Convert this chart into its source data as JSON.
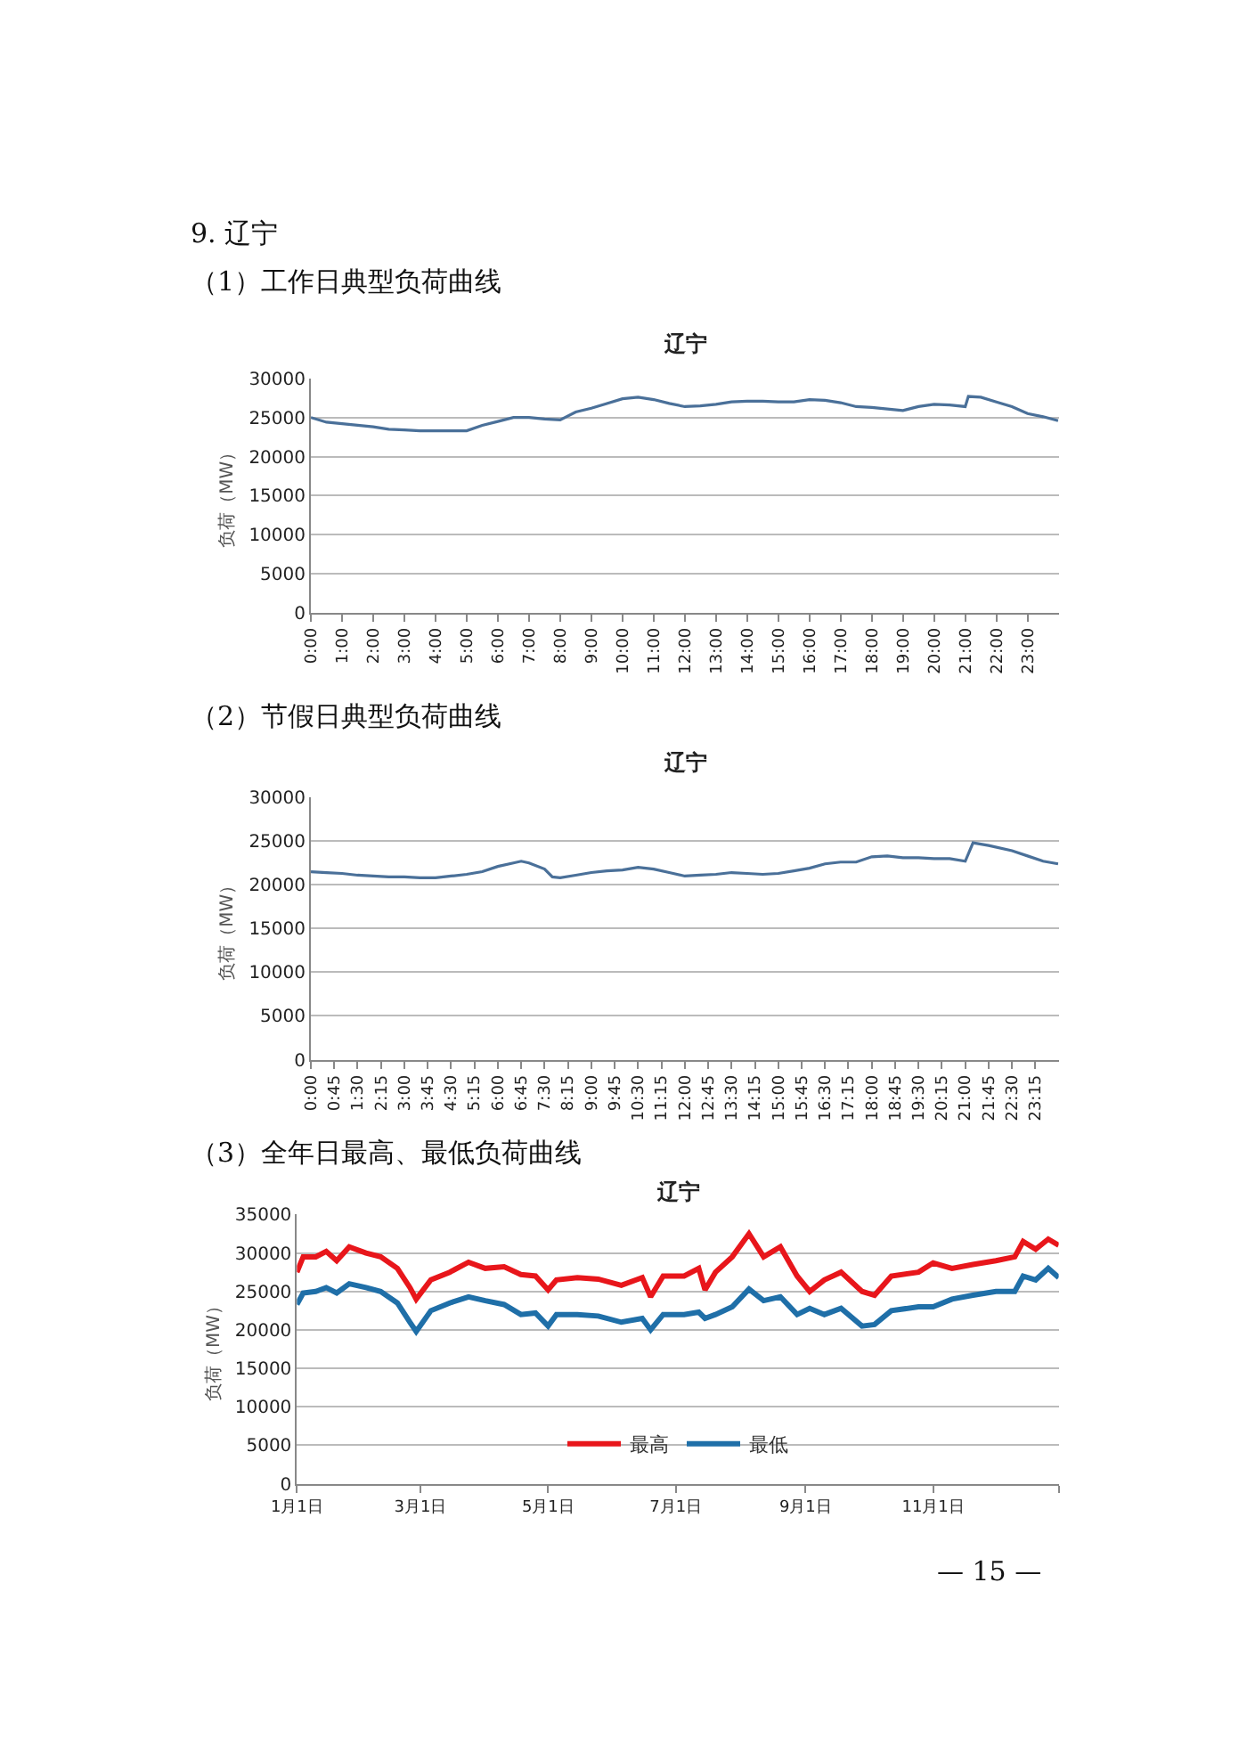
{
  "chart_data": [
    {
      "type": "line",
      "title": "辽宁",
      "ylabel": "负荷（MW）",
      "annotations": [
        "9. 辽宁",
        "（1）工作日典型负荷曲线"
      ],
      "x": [
        0,
        0.5,
        1,
        1.5,
        2,
        2.5,
        3,
        3.5,
        4,
        4.5,
        5,
        5.5,
        6,
        6.5,
        7,
        7.5,
        8,
        8.5,
        9,
        9.5,
        10,
        10.5,
        11,
        11.5,
        12,
        12.5,
        13,
        13.5,
        14,
        14.5,
        15,
        15.5,
        16,
        16.5,
        17,
        17.5,
        18,
        18.5,
        19,
        19.5,
        20,
        20.5,
        21,
        21.1,
        21.5,
        22,
        22.5,
        23,
        23.5,
        23.98
      ],
      "series": [
        {
          "color": "#4a7099",
          "values": [
            25000,
            24400,
            24200,
            24000,
            23800,
            23500,
            23400,
            23300,
            23300,
            23300,
            23300,
            24000,
            24500,
            25000,
            25000,
            24800,
            24700,
            25700,
            26200,
            26800,
            27400,
            27600,
            27300,
            26800,
            26400,
            26500,
            26700,
            27000,
            27100,
            27100,
            27000,
            27000,
            27300,
            27200,
            26900,
            26400,
            26300,
            26100,
            25900,
            26400,
            26700,
            26600,
            26400,
            27700,
            27600,
            27000,
            26400,
            25500,
            25100,
            24600
          ]
        }
      ],
      "xlim": [
        0,
        24
      ],
      "xticks": [
        {
          "value": 0,
          "label": "0:00"
        },
        {
          "value": 1,
          "label": "1:00"
        },
        {
          "value": 2,
          "label": "2:00"
        },
        {
          "value": 3,
          "label": "3:00"
        },
        {
          "value": 4,
          "label": "4:00"
        },
        {
          "value": 5,
          "label": "5:00"
        },
        {
          "value": 6,
          "label": "6:00"
        },
        {
          "value": 7,
          "label": "7:00"
        },
        {
          "value": 8,
          "label": "8:00"
        },
        {
          "value": 9,
          "label": "9:00"
        },
        {
          "value": 10,
          "label": "10:00"
        },
        {
          "value": 11,
          "label": "11:00"
        },
        {
          "value": 12,
          "label": "12:00"
        },
        {
          "value": 13,
          "label": "13:00"
        },
        {
          "value": 14,
          "label": "14:00"
        },
        {
          "value": 15,
          "label": "15:00"
        },
        {
          "value": 16,
          "label": "16:00"
        },
        {
          "value": 17,
          "label": "17:00"
        },
        {
          "value": 18,
          "label": "18:00"
        },
        {
          "value": 19,
          "label": "19:00"
        },
        {
          "value": 20,
          "label": "20:00"
        },
        {
          "value": 21,
          "label": "21:00"
        },
        {
          "value": 22,
          "label": "22:00"
        },
        {
          "value": 23,
          "label": "23:00"
        }
      ],
      "ylim": [
        0,
        30000
      ],
      "yticks": [
        0,
        5000,
        10000,
        15000,
        20000,
        25000,
        30000
      ],
      "grid": "y",
      "legend": false,
      "marker": "none",
      "line_style": "solid"
    },
    {
      "type": "line",
      "title": "辽宁",
      "ylabel": "负荷（MW）",
      "annotations": [
        "（2）节假日典型负荷曲线"
      ],
      "x": [
        0,
        0.5,
        1,
        1.5,
        2,
        2.5,
        3,
        3.5,
        4,
        4.5,
        5,
        5.5,
        6,
        6.5,
        6.75,
        7,
        7.5,
        7.75,
        8,
        8.5,
        9,
        9.5,
        10,
        10.5,
        11,
        11.5,
        12,
        12.5,
        13,
        13.5,
        14,
        14.5,
        15,
        15.5,
        16,
        16.5,
        17,
        17.5,
        18,
        18.5,
        19,
        19.5,
        20,
        20.5,
        21,
        21.25,
        21.75,
        22.5,
        23,
        23.5,
        23.98
      ],
      "series": [
        {
          "color": "#4a7099",
          "values": [
            21500,
            21400,
            21300,
            21100,
            21000,
            20900,
            20900,
            20800,
            20800,
            21000,
            21200,
            21500,
            22100,
            22500,
            22700,
            22500,
            21800,
            20900,
            20800,
            21100,
            21400,
            21600,
            21700,
            22000,
            21800,
            21400,
            21000,
            21100,
            21200,
            21400,
            21300,
            21200,
            21300,
            21600,
            21900,
            22400,
            22600,
            22600,
            23200,
            23300,
            23100,
            23100,
            23000,
            23000,
            22700,
            24800,
            24500,
            23900,
            23300,
            22700,
            22400
          ]
        }
      ],
      "xlim": [
        0,
        24
      ],
      "xticks": [
        {
          "value": 0,
          "label": "0:00"
        },
        {
          "value": 0.75,
          "label": "0:45"
        },
        {
          "value": 1.5,
          "label": "1:30"
        },
        {
          "value": 2.25,
          "label": "2:15"
        },
        {
          "value": 3,
          "label": "3:00"
        },
        {
          "value": 3.75,
          "label": "3:45"
        },
        {
          "value": 4.5,
          "label": "4:30"
        },
        {
          "value": 5.25,
          "label": "5:15"
        },
        {
          "value": 6,
          "label": "6:00"
        },
        {
          "value": 6.75,
          "label": "6:45"
        },
        {
          "value": 7.5,
          "label": "7:30"
        },
        {
          "value": 8.25,
          "label": "8:15"
        },
        {
          "value": 9,
          "label": "9:00"
        },
        {
          "value": 9.75,
          "label": "9:45"
        },
        {
          "value": 10.5,
          "label": "10:30"
        },
        {
          "value": 11.25,
          "label": "11:15"
        },
        {
          "value": 12,
          "label": "12:00"
        },
        {
          "value": 12.75,
          "label": "12:45"
        },
        {
          "value": 13.5,
          "label": "13:30"
        },
        {
          "value": 14.25,
          "label": "14:15"
        },
        {
          "value": 15,
          "label": "15:00"
        },
        {
          "value": 15.75,
          "label": "15:45"
        },
        {
          "value": 16.5,
          "label": "16:30"
        },
        {
          "value": 17.25,
          "label": "17:15"
        },
        {
          "value": 18,
          "label": "18:00"
        },
        {
          "value": 18.75,
          "label": "18:45"
        },
        {
          "value": 19.5,
          "label": "19:30"
        },
        {
          "value": 20.25,
          "label": "20:15"
        },
        {
          "value": 21,
          "label": "21:00"
        },
        {
          "value": 21.75,
          "label": "21:45"
        },
        {
          "value": 22.5,
          "label": "22:30"
        },
        {
          "value": 23.25,
          "label": "23:15"
        }
      ],
      "ylim": [
        0,
        30000
      ],
      "yticks": [
        0,
        5000,
        10000,
        15000,
        20000,
        25000,
        30000
      ],
      "grid": "y",
      "legend": false,
      "marker": "none",
      "line_style": "solid"
    },
    {
      "type": "line",
      "title": "辽宁",
      "ylabel": "负荷（MW）",
      "annotations": [
        "（3）全年日最高、最低负荷曲线",
        "— 15 —"
      ],
      "x": [
        "--01-01",
        "--01-04",
        "--01-10",
        "--01-15",
        "--01-20",
        "--01-26",
        "--02-03",
        "--02-10",
        "--02-18",
        "--02-24",
        "--02-27",
        "--03-06",
        "--03-15",
        "--03-24",
        "--04-01",
        "--04-10",
        "--04-18",
        "--04-25",
        "--05-01",
        "--05-05",
        "--05-15",
        "--05-25",
        "--06-05",
        "--06-15",
        "--06-19",
        "--06-25",
        "--07-05",
        "--07-12",
        "--07-15",
        "--07-20",
        "--07-28",
        "--08-05",
        "--08-12",
        "--08-20",
        "--08-28",
        "--09-03",
        "--09-10",
        "--09-18",
        "--09-28",
        "--10-04",
        "--10-12",
        "--10-25",
        "--11-01",
        "--11-10",
        "--11-20",
        "--12-01",
        "--12-10",
        "--12-14",
        "--12-20",
        "--12-26",
        "--12-31"
      ],
      "series": [
        {
          "name": "最高",
          "color": "#e8161b",
          "values": [
            27500,
            29500,
            29500,
            30200,
            29000,
            30800,
            30000,
            29500,
            28000,
            25500,
            24000,
            26500,
            27500,
            28800,
            28000,
            28200,
            27200,
            27000,
            25200,
            26500,
            26800,
            26600,
            25800,
            26800,
            24300,
            27000,
            27000,
            28000,
            25200,
            27500,
            29500,
            32500,
            29500,
            30800,
            27000,
            25000,
            26500,
            27500,
            25000,
            24500,
            27000,
            27500,
            28700,
            28000,
            28500,
            29000,
            29500,
            31500,
            30500,
            31800,
            31000
          ]
        },
        {
          "name": "最低",
          "color": "#1f6fa8",
          "values": [
            23300,
            24800,
            25000,
            25500,
            24800,
            26000,
            25500,
            25000,
            23500,
            21000,
            19800,
            22500,
            23500,
            24300,
            23800,
            23300,
            22000,
            22200,
            20500,
            22000,
            22000,
            21800,
            21000,
            21500,
            20000,
            22000,
            22000,
            22300,
            21500,
            22000,
            23000,
            25300,
            23800,
            24300,
            22000,
            22800,
            22000,
            22800,
            20500,
            20700,
            22500,
            23000,
            23000,
            24000,
            24500,
            25000,
            25000,
            27000,
            26500,
            28000,
            26800
          ]
        }
      ],
      "xlim": [
        "--01-01",
        "--12-31"
      ],
      "xticks": [
        {
          "value": "--01-01",
          "label": "1月1日"
        },
        {
          "value": "--03-01",
          "label": "3月1日"
        },
        {
          "value": "--05-01",
          "label": "5月1日"
        },
        {
          "value": "--07-01",
          "label": "7月1日"
        },
        {
          "value": "--09-01",
          "label": "9月1日"
        },
        {
          "value": "--11-01",
          "label": "11月1日"
        },
        {
          "value": "--12-31",
          "label": null
        }
      ],
      "ylim": [
        0,
        35000
      ],
      "yticks": [
        0,
        5000,
        10000,
        15000,
        20000,
        25000,
        30000,
        35000
      ],
      "grid": "y",
      "legend": "bottom",
      "marker": "none",
      "line_style": "solid"
    }
  ]
}
